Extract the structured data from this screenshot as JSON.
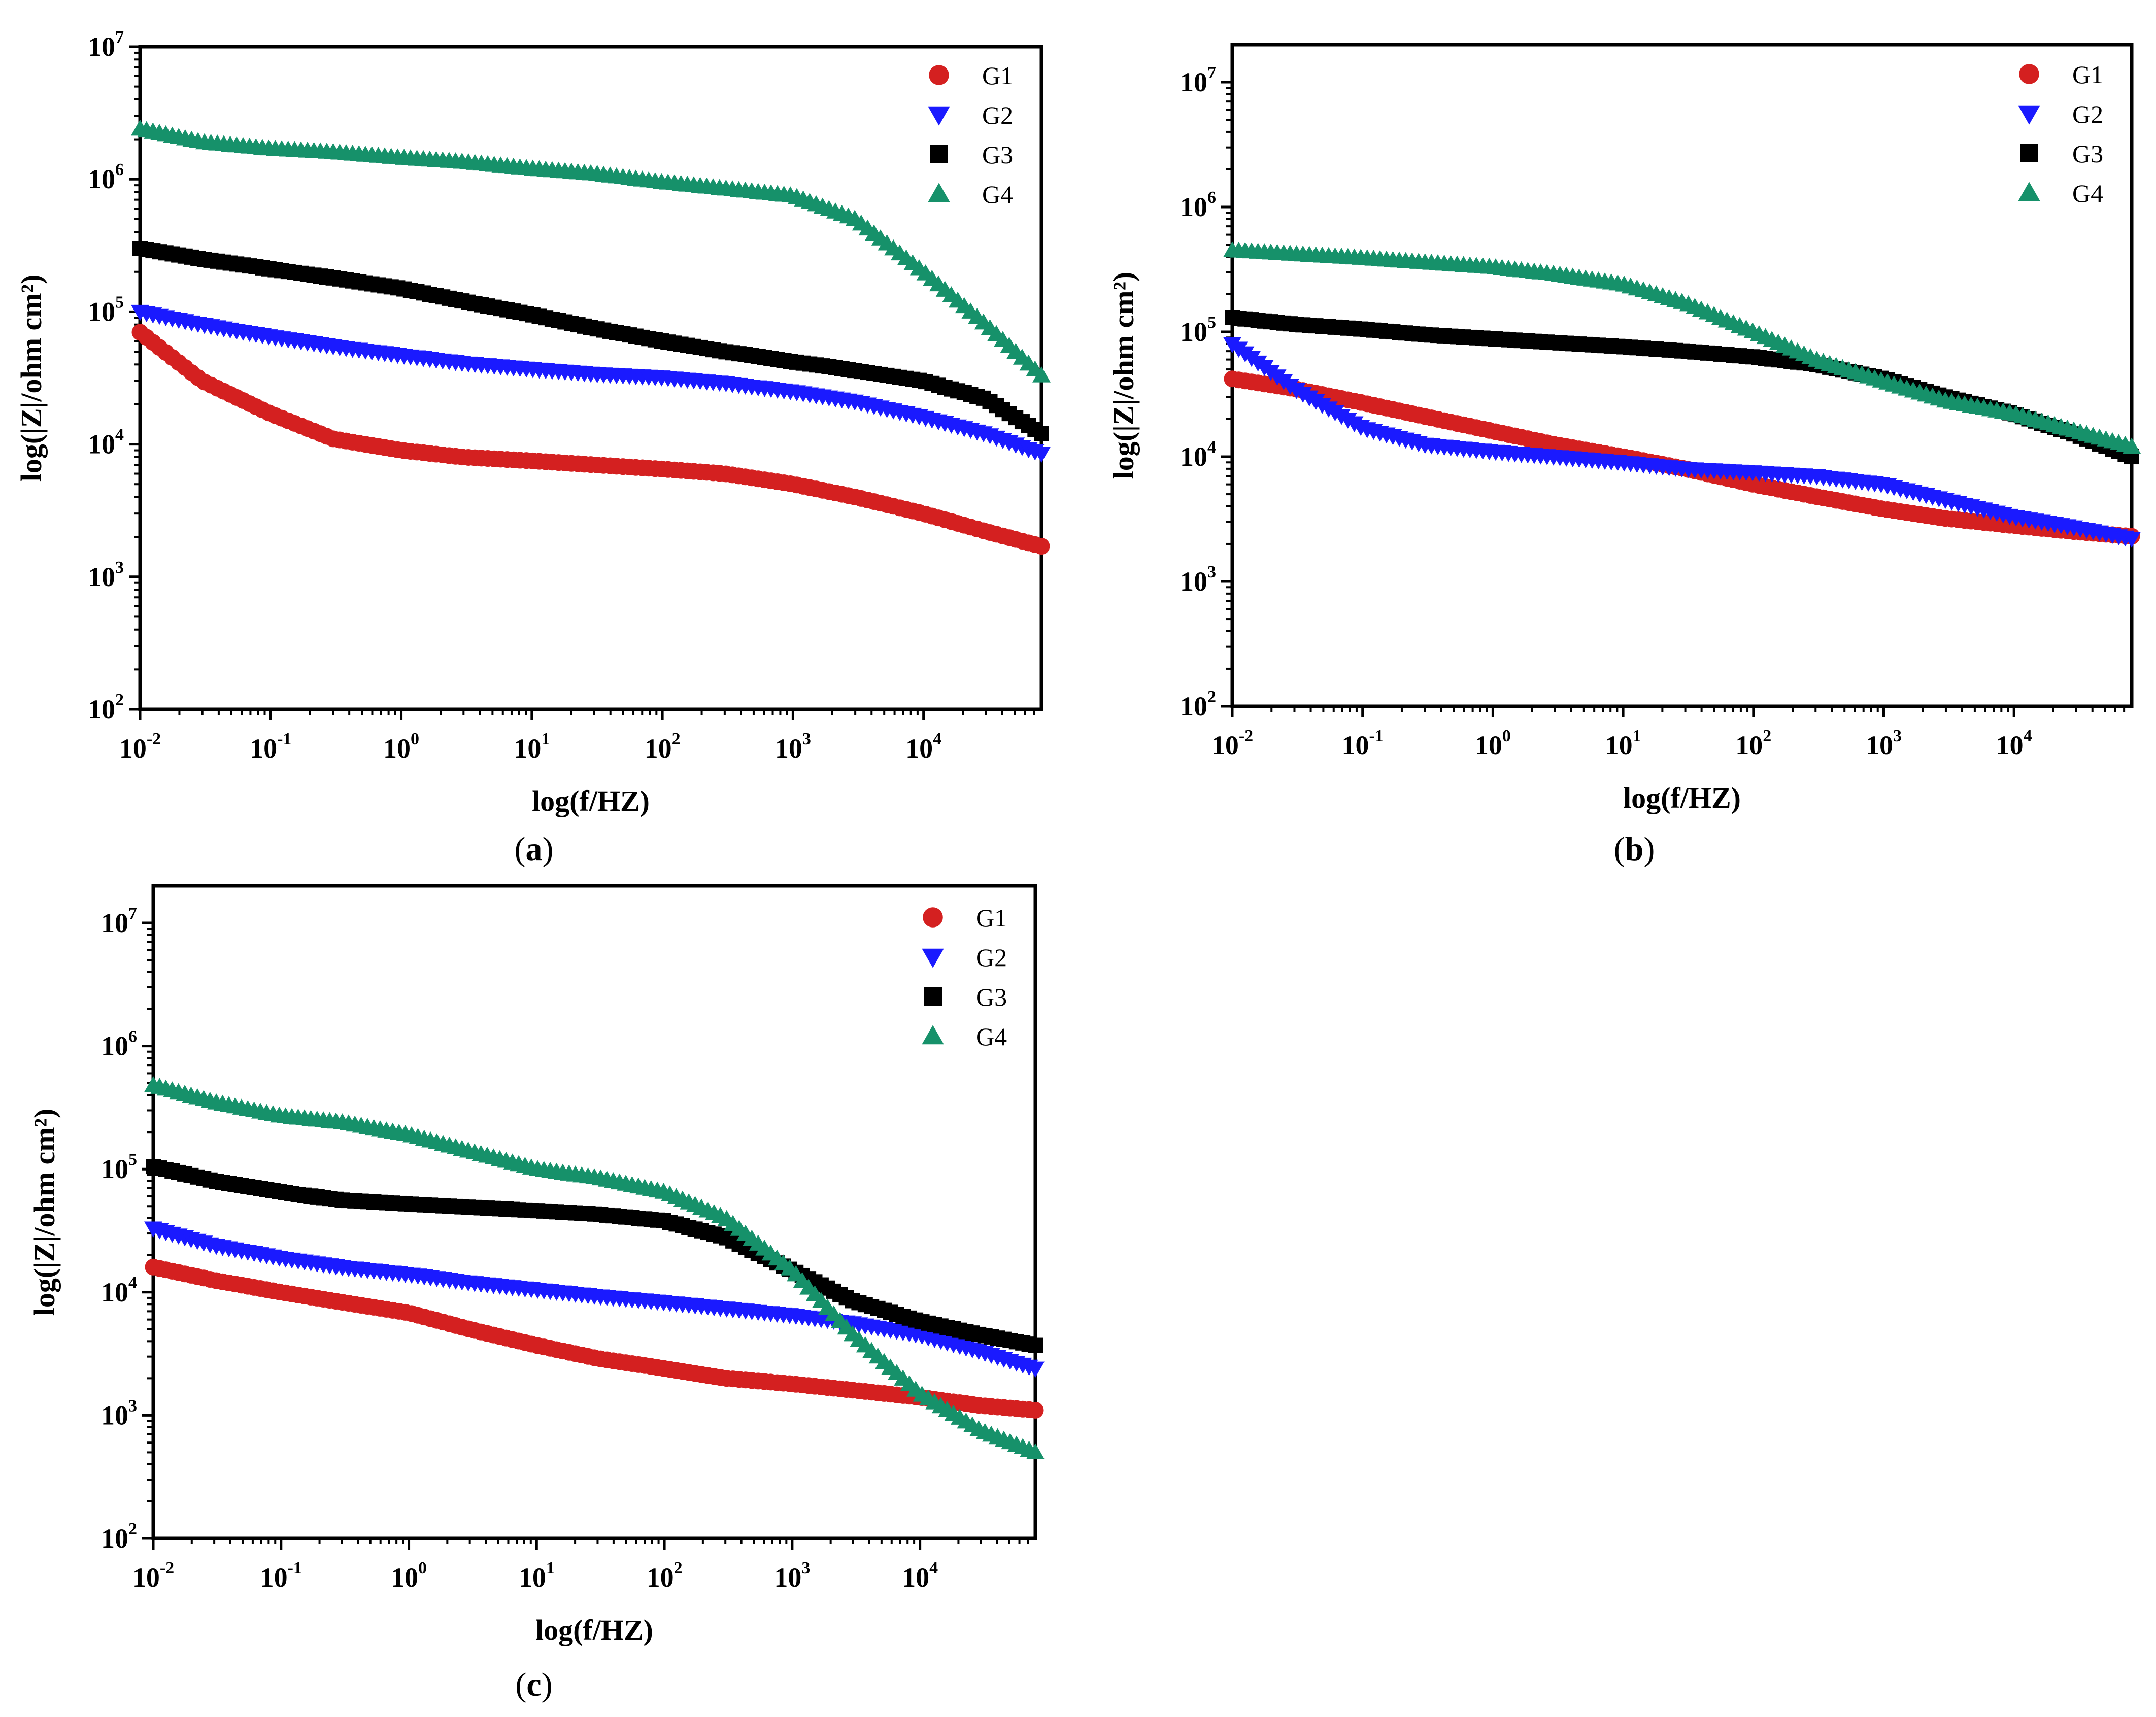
{
  "figure": {
    "series_colors": {
      "G1": "#d42020",
      "G2": "#1a1aff",
      "G3": "#000000",
      "G4": "#16916a"
    },
    "marker_icons": {
      "G1": "circle-marker-icon",
      "G2": "down-triangle-marker-icon",
      "G3": "square-marker-icon",
      "G4": "up-triangle-marker-icon"
    }
  },
  "chart_data": [
    {
      "id": "a",
      "caption": "a",
      "type": "line",
      "xlabel": "log(f/HZ)",
      "ylabel": "log(|Z|/ohm cm²)",
      "xscale": "log",
      "yscale": "log",
      "xlim": [
        0.01,
        80000
      ],
      "ylim": [
        100,
        10000000
      ],
      "x_ticks": [
        "10^-2",
        "10^-1",
        "10^0",
        "10^1",
        "10^2",
        "10^3",
        "10^4"
      ],
      "y_ticks": [
        "10^2",
        "10^3",
        "10^4",
        "10^5",
        "10^6",
        "10^7"
      ],
      "legend_position": "top-right",
      "series": [
        {
          "name": "G1",
          "marker": "circle",
          "points": [
            [
              0.01,
              70000
            ],
            [
              0.03,
              30000
            ],
            [
              0.1,
              17000
            ],
            [
              0.3,
              11000
            ],
            [
              1,
              9000
            ],
            [
              3,
              8000
            ],
            [
              10,
              7500
            ],
            [
              30,
              7000
            ],
            [
              100,
              6500
            ],
            [
              300,
              6000
            ],
            [
              1000,
              5000
            ],
            [
              3000,
              4000
            ],
            [
              10000,
              3000
            ],
            [
              30000,
              2200
            ],
            [
              80000,
              1700
            ]
          ]
        },
        {
          "name": "G2",
          "marker": "triangle-down",
          "points": [
            [
              0.01,
              100000
            ],
            [
              0.03,
              80000
            ],
            [
              0.1,
              65000
            ],
            [
              0.3,
              55000
            ],
            [
              1,
              47000
            ],
            [
              3,
              41000
            ],
            [
              10,
              37000
            ],
            [
              30,
              34000
            ],
            [
              100,
              32000
            ],
            [
              300,
              29000
            ],
            [
              1000,
              25000
            ],
            [
              3000,
              21000
            ],
            [
              10000,
              16000
            ],
            [
              30000,
              12000
            ],
            [
              80000,
              8500
            ]
          ]
        },
        {
          "name": "G3",
          "marker": "square",
          "points": [
            [
              0.01,
              300000
            ],
            [
              0.03,
              250000
            ],
            [
              0.1,
              210000
            ],
            [
              0.3,
              180000
            ],
            [
              1,
              150000
            ],
            [
              3,
              120000
            ],
            [
              10,
              95000
            ],
            [
              30,
              75000
            ],
            [
              100,
              60000
            ],
            [
              300,
              50000
            ],
            [
              1000,
              42000
            ],
            [
              3000,
              36000
            ],
            [
              10000,
              30000
            ],
            [
              30000,
              22000
            ],
            [
              80000,
              12000
            ]
          ]
        },
        {
          "name": "G4",
          "marker": "triangle-up",
          "points": [
            [
              0.01,
              2400000
            ],
            [
              0.03,
              1900000
            ],
            [
              0.1,
              1700000
            ],
            [
              0.3,
              1600000
            ],
            [
              1,
              1450000
            ],
            [
              3,
              1350000
            ],
            [
              10,
              1200000
            ],
            [
              30,
              1100000
            ],
            [
              100,
              950000
            ],
            [
              300,
              850000
            ],
            [
              1000,
              750000
            ],
            [
              3000,
              500000
            ],
            [
              10000,
              200000
            ],
            [
              30000,
              80000
            ],
            [
              80000,
              33000
            ]
          ]
        }
      ]
    },
    {
      "id": "b",
      "caption": "b",
      "type": "line",
      "xlabel": "log(f/HZ)",
      "ylabel": "log(|Z|/ohm cm²)",
      "xscale": "log",
      "yscale": "log",
      "xlim": [
        0.01,
        80000
      ],
      "ylim": [
        100,
        20000000
      ],
      "x_ticks": [
        "10^-2",
        "10^-1",
        "10^0",
        "10^1",
        "10^2",
        "10^3",
        "10^4"
      ],
      "y_ticks": [
        "10^2",
        "10^3",
        "10^4",
        "10^5",
        "10^6",
        "10^7"
      ],
      "legend_position": "top-right",
      "series": [
        {
          "name": "G1",
          "marker": "circle",
          "points": [
            [
              0.01,
              42000
            ],
            [
              0.03,
              35000
            ],
            [
              0.1,
              27000
            ],
            [
              0.3,
              21000
            ],
            [
              1,
              16000
            ],
            [
              3,
              12500
            ],
            [
              10,
              10000
            ],
            [
              30,
              8000
            ],
            [
              100,
              6000
            ],
            [
              300,
              4800
            ],
            [
              1000,
              3800
            ],
            [
              3000,
              3200
            ],
            [
              10000,
              2800
            ],
            [
              30000,
              2500
            ],
            [
              80000,
              2300
            ]
          ]
        },
        {
          "name": "G2",
          "marker": "triangle-down",
          "points": [
            [
              0.01,
              80000
            ],
            [
              0.03,
              35000
            ],
            [
              0.1,
              17000
            ],
            [
              0.3,
              12500
            ],
            [
              1,
              11000
            ],
            [
              3,
              10000
            ],
            [
              10,
              9000
            ],
            [
              30,
              8000
            ],
            [
              100,
              7500
            ],
            [
              300,
              7000
            ],
            [
              1000,
              6000
            ],
            [
              3000,
              4500
            ],
            [
              10000,
              3300
            ],
            [
              30000,
              2700
            ],
            [
              80000,
              2200
            ]
          ]
        },
        {
          "name": "G3",
          "marker": "square",
          "points": [
            [
              0.01,
              130000
            ],
            [
              0.03,
              115000
            ],
            [
              0.1,
              105000
            ],
            [
              0.3,
              95000
            ],
            [
              1,
              88000
            ],
            [
              3,
              82000
            ],
            [
              10,
              76000
            ],
            [
              30,
              70000
            ],
            [
              100,
              63000
            ],
            [
              300,
              55000
            ],
            [
              1000,
              42000
            ],
            [
              3000,
              30000
            ],
            [
              10000,
              22000
            ],
            [
              30000,
              15000
            ],
            [
              80000,
              10000
            ]
          ]
        },
        {
          "name": "G4",
          "marker": "triangle-up",
          "points": [
            [
              0.01,
              450000
            ],
            [
              0.03,
              420000
            ],
            [
              0.1,
              390000
            ],
            [
              0.3,
              360000
            ],
            [
              1,
              330000
            ],
            [
              3,
              290000
            ],
            [
              10,
              240000
            ],
            [
              30,
              170000
            ],
            [
              100,
              100000
            ],
            [
              300,
              60000
            ],
            [
              1000,
              40000
            ],
            [
              3000,
              28000
            ],
            [
              10000,
              22000
            ],
            [
              30000,
              16000
            ],
            [
              80000,
              12000
            ]
          ]
        }
      ]
    },
    {
      "id": "c",
      "caption": "c",
      "type": "line",
      "xlabel": "log(f/HZ)",
      "ylabel": "log(|Z|/ohm cm²)",
      "xscale": "log",
      "yscale": "log",
      "xlim": [
        0.01,
        80000
      ],
      "ylim": [
        100,
        20000000
      ],
      "x_ticks": [
        "10^-2",
        "10^-1",
        "10^0",
        "10^1",
        "10^2",
        "10^3",
        "10^4"
      ],
      "y_ticks": [
        "10^2",
        "10^3",
        "10^4",
        "10^5",
        "10^6",
        "10^7"
      ],
      "legend_position": "top-right",
      "series": [
        {
          "name": "G1",
          "marker": "circle",
          "points": [
            [
              0.01,
              16000
            ],
            [
              0.03,
              12500
            ],
            [
              0.1,
              10000
            ],
            [
              0.3,
              8300
            ],
            [
              1,
              6800
            ],
            [
              3,
              5000
            ],
            [
              10,
              3700
            ],
            [
              30,
              2900
            ],
            [
              100,
              2400
            ],
            [
              300,
              2000
            ],
            [
              1000,
              1800
            ],
            [
              3000,
              1600
            ],
            [
              10000,
              1400
            ],
            [
              30000,
              1200
            ],
            [
              80000,
              1100
            ]
          ]
        },
        {
          "name": "G2",
          "marker": "triangle-down",
          "points": [
            [
              0.01,
              33000
            ],
            [
              0.03,
              24000
            ],
            [
              0.1,
              19000
            ],
            [
              0.3,
              16000
            ],
            [
              1,
              14000
            ],
            [
              3,
              12000
            ],
            [
              10,
              10500
            ],
            [
              30,
              9300
            ],
            [
              100,
              8300
            ],
            [
              300,
              7400
            ],
            [
              1000,
              6500
            ],
            [
              3000,
              5600
            ],
            [
              10000,
              4500
            ],
            [
              30000,
              3300
            ],
            [
              80000,
              2400
            ]
          ]
        },
        {
          "name": "G3",
          "marker": "square",
          "points": [
            [
              0.01,
              105000
            ],
            [
              0.03,
              80000
            ],
            [
              0.1,
              65000
            ],
            [
              0.3,
              56000
            ],
            [
              1,
              52000
            ],
            [
              3,
              49000
            ],
            [
              10,
              46000
            ],
            [
              30,
              43000
            ],
            [
              100,
              38000
            ],
            [
              300,
              28000
            ],
            [
              1000,
              15000
            ],
            [
              3000,
              8500
            ],
            [
              10000,
              5800
            ],
            [
              30000,
              4500
            ],
            [
              80000,
              3700
            ]
          ]
        },
        {
          "name": "G4",
          "marker": "triangle-up",
          "points": [
            [
              0.01,
              480000
            ],
            [
              0.03,
              350000
            ],
            [
              0.1,
              270000
            ],
            [
              0.3,
              240000
            ],
            [
              1,
              190000
            ],
            [
              3,
              140000
            ],
            [
              10,
              100000
            ],
            [
              30,
              85000
            ],
            [
              100,
              65000
            ],
            [
              300,
              40000
            ],
            [
              1000,
              15000
            ],
            [
              3000,
              4500
            ],
            [
              10000,
              1500
            ],
            [
              30000,
              750
            ],
            [
              80000,
              500
            ]
          ]
        }
      ]
    }
  ]
}
